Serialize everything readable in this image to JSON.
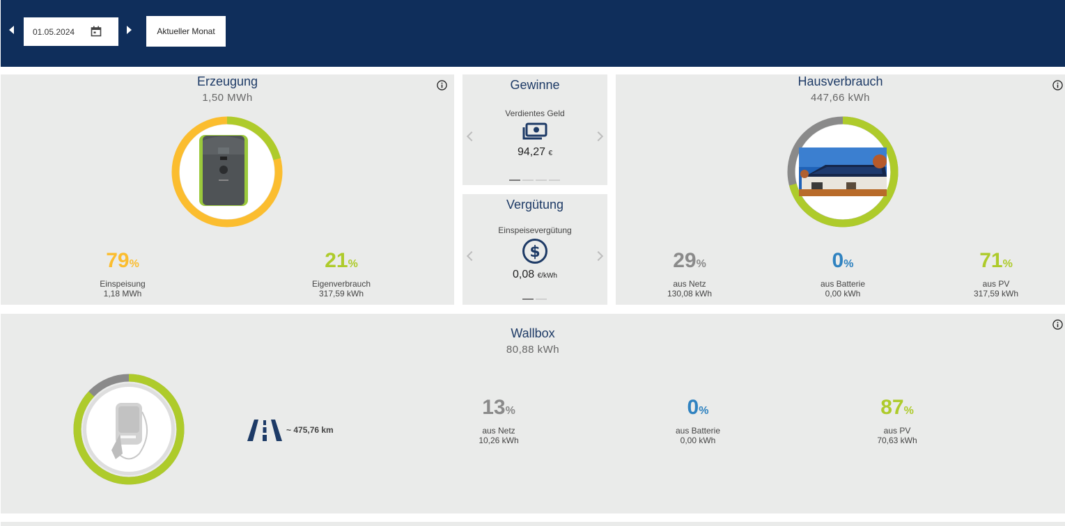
{
  "header": {
    "date_value": "01.05.2024",
    "current_month_label": "Aktueller Monat"
  },
  "erzeugung": {
    "title": "Erzeugung",
    "total": "1,50 MWh",
    "einspeisung": {
      "percent": "79",
      "percent_sign": "%",
      "label": "Einspeisung",
      "value": "1,18 MWh"
    },
    "eigenverbrauch": {
      "percent": "21",
      "percent_sign": "%",
      "label": "Eigenverbrauch",
      "value": "317,59 kWh"
    }
  },
  "gewinne": {
    "title": "Gewinne",
    "item_label": "Verdientes Geld",
    "value": "94,27",
    "unit": "€",
    "slide_count": 4,
    "active_slide": 0
  },
  "verguetung": {
    "title": "Vergütung",
    "item_label": "Einspeisevergütung",
    "value": "0,08",
    "unit": "€/kWh",
    "slide_count": 2,
    "active_slide": 0
  },
  "hausverbrauch": {
    "title": "Hausverbrauch",
    "total": "447,66 kWh",
    "netz": {
      "percent": "29",
      "percent_sign": "%",
      "label": "aus Netz",
      "value": "130,08 kWh"
    },
    "batterie": {
      "percent": "0",
      "percent_sign": "%",
      "label": "aus Batterie",
      "value": "0,00 kWh"
    },
    "pv": {
      "percent": "71",
      "percent_sign": "%",
      "label": "aus PV",
      "value": "317,59 kWh"
    }
  },
  "wallbox": {
    "title": "Wallbox",
    "total": "80,88 kWh",
    "range": "~ 475,76 km",
    "netz": {
      "percent": "13",
      "percent_sign": "%",
      "label": "aus Netz",
      "value": "10,26 kWh"
    },
    "batterie": {
      "percent": "0",
      "percent_sign": "%",
      "label": "aus Batterie",
      "value": "0,00 kWh"
    },
    "pv": {
      "percent": "87",
      "percent_sign": "%",
      "label": "aus PV",
      "value": "70,63 kWh"
    }
  },
  "colors": {
    "header_bg": "#0f2e5b",
    "panel_bg": "#eaebea",
    "yellow": "#fbbd2f",
    "green": "#aecb2b",
    "gray": "#8a8a8a",
    "blue": "#2f82c0",
    "title": "#1d3a66"
  },
  "icons": [
    "chevron-left-icon",
    "calendar-icon",
    "chevron-right-icon",
    "info-icon",
    "money-icon",
    "dollar-coin-icon",
    "road-icon",
    "inverter-image",
    "house-photo",
    "wallbox-image"
  ]
}
